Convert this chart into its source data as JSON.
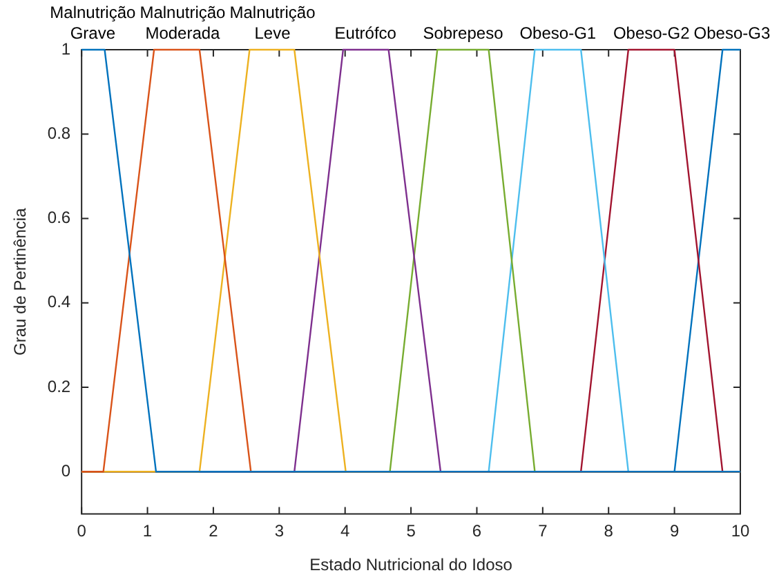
{
  "chart_data": {
    "type": "line",
    "xlabel": "Estado Nutricional do Idoso",
    "ylabel": "Grau de Pertinência",
    "xlim": [
      0,
      10
    ],
    "xticks": [
      0,
      1,
      2,
      3,
      4,
      5,
      6,
      7,
      8,
      9,
      10
    ],
    "ylim": [
      -0.1,
      1
    ],
    "yticks": [
      0,
      0.2,
      0.4,
      0.6,
      0.8,
      1
    ],
    "grid": false,
    "legend": false,
    "marker": "none",
    "line_style": "solid",
    "series": [
      {
        "color": "#0072bd",
        "x": [
          0,
          0.35,
          1.13,
          10
        ],
        "values": [
          1,
          1,
          0,
          0
        ]
      },
      {
        "color": "#d95319",
        "x": [
          0,
          0.33,
          1.1,
          1.79,
          2.57,
          10
        ],
        "values": [
          0,
          0,
          1,
          1,
          0,
          0
        ]
      },
      {
        "color": "#edb120",
        "x": [
          0,
          1.79,
          2.55,
          3.23,
          4.01,
          10
        ],
        "values": [
          0,
          0,
          1,
          1,
          0,
          0
        ]
      },
      {
        "color": "#7e2f8e",
        "x": [
          0,
          3.23,
          3.97,
          4.66,
          5.45,
          10
        ],
        "values": [
          0,
          0,
          1,
          1,
          0,
          0
        ]
      },
      {
        "color": "#77ac30",
        "x": [
          0,
          4.68,
          5.4,
          6.18,
          6.88,
          10
        ],
        "values": [
          0,
          0,
          1,
          1,
          0,
          0
        ]
      },
      {
        "color": "#4dbeee",
        "x": [
          0,
          6.18,
          6.88,
          7.58,
          8.3,
          10
        ],
        "values": [
          0,
          0,
          1,
          1,
          0,
          0
        ]
      },
      {
        "color": "#a2142f",
        "x": [
          0,
          7.58,
          8.3,
          9,
          9.73,
          10
        ],
        "values": [
          0,
          0,
          1,
          1,
          0,
          0
        ]
      },
      {
        "color": "#0072bd",
        "x": [
          0,
          9,
          9.73,
          10
        ],
        "values": [
          0,
          0,
          1,
          1
        ]
      }
    ],
    "annotations": [
      {
        "text": "Malnutrição\nGrave",
        "x": 0.17,
        "y": 1
      },
      {
        "text": "Malnutrição\nModerada",
        "x": 1.45,
        "y": 1
      },
      {
        "text": "Malnutrição\nLeve",
        "x": 2.89,
        "y": 1
      },
      {
        "text": "Eutrófco",
        "x": 4.31,
        "y": 1
      },
      {
        "text": "Sobrepeso",
        "x": 5.79,
        "y": 1
      },
      {
        "text": "Obeso-G1",
        "x": 7.23,
        "y": 1
      },
      {
        "text": "Obeso-G2",
        "x": 8.65,
        "y": 1
      },
      {
        "text": "Obeso-G3",
        "x": 9.87,
        "y": 1
      }
    ]
  }
}
